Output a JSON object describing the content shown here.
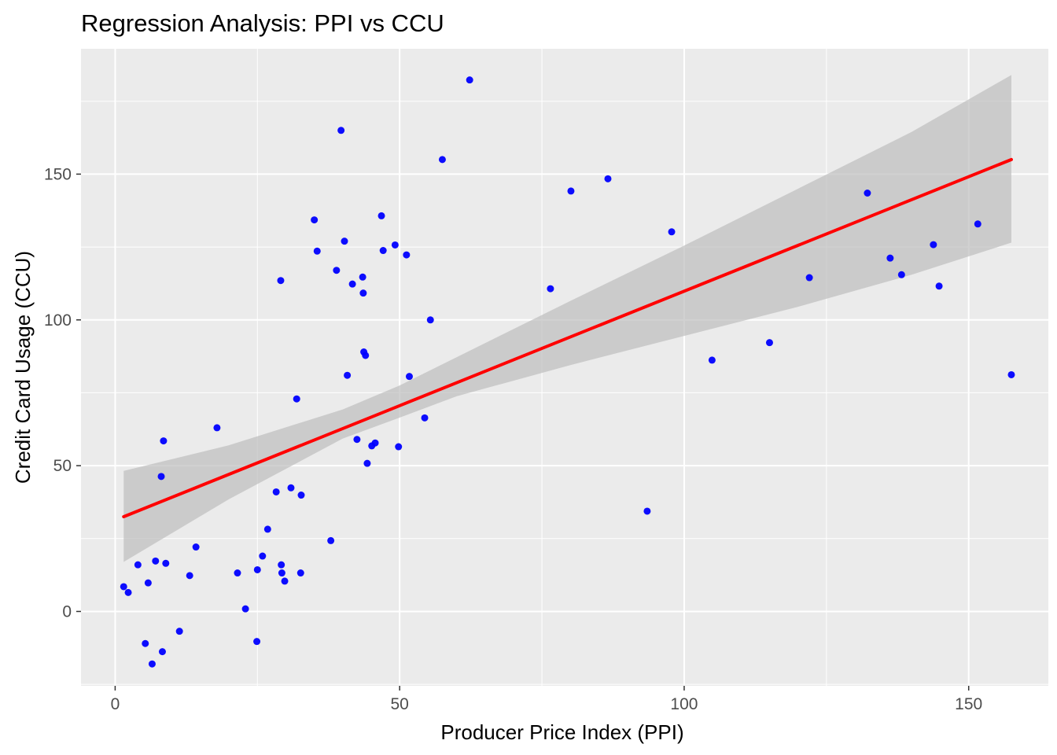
{
  "chart_data": {
    "type": "scatter",
    "title": "Regression Analysis: PPI vs CCU",
    "xlabel": "Producer Price Index (PPI)",
    "ylabel": "Credit Card Usage (CCU)",
    "xlim": [
      -6,
      164
    ],
    "ylim": [
      -25.5,
      193
    ],
    "x_ticks": [
      0,
      50,
      100,
      150
    ],
    "y_ticks": [
      0,
      50,
      100,
      150
    ],
    "x_tick_labels": [
      "0",
      "50",
      "100",
      "150"
    ],
    "y_tick_labels": [
      "0",
      "50",
      "100",
      "150"
    ],
    "grid": true,
    "legend": "none",
    "colors": {
      "panel_background": "#ebebeb",
      "grid": "#ffffff",
      "points": "#0000ff",
      "regression_line": "#ff0000",
      "confidence_band": "#bebebe"
    },
    "series": [
      {
        "type": "scatter",
        "points": [
          {
            "x": 1.5,
            "y": 8.5
          },
          {
            "x": 2.3,
            "y": 6.5
          },
          {
            "x": 4.0,
            "y": 16.0
          },
          {
            "x": 5.3,
            "y": -11.0
          },
          {
            "x": 5.8,
            "y": 9.8
          },
          {
            "x": 6.5,
            "y": -18.0
          },
          {
            "x": 7.1,
            "y": 17.3
          },
          {
            "x": 8.1,
            "y": 46.3
          },
          {
            "x": 8.3,
            "y": -13.8
          },
          {
            "x": 8.5,
            "y": 58.5
          },
          {
            "x": 8.9,
            "y": 16.5
          },
          {
            "x": 11.3,
            "y": -6.8
          },
          {
            "x": 13.1,
            "y": 12.3
          },
          {
            "x": 14.2,
            "y": 22.1
          },
          {
            "x": 17.9,
            "y": 63.0
          },
          {
            "x": 21.5,
            "y": 13.2
          },
          {
            "x": 22.9,
            "y": 0.9
          },
          {
            "x": 24.9,
            "y": -10.3
          },
          {
            "x": 25.0,
            "y": 14.3
          },
          {
            "x": 25.9,
            "y": 19.0
          },
          {
            "x": 26.8,
            "y": 28.2
          },
          {
            "x": 28.3,
            "y": 41.0
          },
          {
            "x": 29.1,
            "y": 113.5
          },
          {
            "x": 29.2,
            "y": 16.0
          },
          {
            "x": 29.3,
            "y": 13.2
          },
          {
            "x": 29.8,
            "y": 10.4
          },
          {
            "x": 30.9,
            "y": 42.4
          },
          {
            "x": 31.9,
            "y": 72.9
          },
          {
            "x": 32.6,
            "y": 13.2
          },
          {
            "x": 32.7,
            "y": 39.9
          },
          {
            "x": 35.0,
            "y": 134.3
          },
          {
            "x": 35.5,
            "y": 123.6
          },
          {
            "x": 37.9,
            "y": 24.3
          },
          {
            "x": 38.9,
            "y": 117.0
          },
          {
            "x": 39.7,
            "y": 165.0
          },
          {
            "x": 40.3,
            "y": 127.0
          },
          {
            "x": 40.8,
            "y": 81.0
          },
          {
            "x": 41.7,
            "y": 112.3
          },
          {
            "x": 42.5,
            "y": 59.0
          },
          {
            "x": 43.5,
            "y": 114.7
          },
          {
            "x": 43.6,
            "y": 109.2
          },
          {
            "x": 43.7,
            "y": 89.0
          },
          {
            "x": 44.0,
            "y": 87.8
          },
          {
            "x": 44.3,
            "y": 50.8
          },
          {
            "x": 45.1,
            "y": 56.8
          },
          {
            "x": 45.7,
            "y": 57.8
          },
          {
            "x": 46.8,
            "y": 135.7
          },
          {
            "x": 47.1,
            "y": 123.8
          },
          {
            "x": 49.2,
            "y": 125.7
          },
          {
            "x": 49.8,
            "y": 56.5
          },
          {
            "x": 51.2,
            "y": 122.3
          },
          {
            "x": 51.7,
            "y": 80.6
          },
          {
            "x": 54.4,
            "y": 66.4
          },
          {
            "x": 55.4,
            "y": 100.0
          },
          {
            "x": 57.5,
            "y": 155.0
          },
          {
            "x": 62.3,
            "y": 182.3
          },
          {
            "x": 76.5,
            "y": 110.7
          },
          {
            "x": 80.1,
            "y": 144.2
          },
          {
            "x": 86.6,
            "y": 148.4
          },
          {
            "x": 93.5,
            "y": 34.4
          },
          {
            "x": 97.8,
            "y": 130.2
          },
          {
            "x": 104.9,
            "y": 86.2
          },
          {
            "x": 115.0,
            "y": 92.2
          },
          {
            "x": 122.0,
            "y": 114.5
          },
          {
            "x": 132.2,
            "y": 143.5
          },
          {
            "x": 136.2,
            "y": 121.2
          },
          {
            "x": 138.2,
            "y": 115.5
          },
          {
            "x": 143.8,
            "y": 125.8
          },
          {
            "x": 144.8,
            "y": 111.6
          },
          {
            "x": 151.6,
            "y": 132.9
          },
          {
            "x": 157.5,
            "y": 81.2
          }
        ]
      },
      {
        "type": "line",
        "points": [
          {
            "x": 1.5,
            "y": 32.5
          },
          {
            "x": 157.5,
            "y": 155.0
          }
        ]
      },
      {
        "type": "area",
        "upper": [
          {
            "x": 1.5,
            "y": 48.2
          },
          {
            "x": 20,
            "y": 57.0
          },
          {
            "x": 40,
            "y": 69.3
          },
          {
            "x": 50,
            "y": 77.5
          },
          {
            "x": 60,
            "y": 87.2
          },
          {
            "x": 80,
            "y": 106.5
          },
          {
            "x": 100,
            "y": 125.5
          },
          {
            "x": 120,
            "y": 145.0
          },
          {
            "x": 140,
            "y": 164.5
          },
          {
            "x": 157.5,
            "y": 184.0
          }
        ],
        "lower": [
          {
            "x": 1.5,
            "y": 17.0
          },
          {
            "x": 20,
            "y": 38.5
          },
          {
            "x": 40,
            "y": 59.3
          },
          {
            "x": 50,
            "y": 66.5
          },
          {
            "x": 60,
            "y": 73.8
          },
          {
            "x": 80,
            "y": 84.5
          },
          {
            "x": 100,
            "y": 94.5
          },
          {
            "x": 120,
            "y": 104.5
          },
          {
            "x": 140,
            "y": 115.5
          },
          {
            "x": 157.5,
            "y": 126.5
          }
        ]
      }
    ]
  }
}
